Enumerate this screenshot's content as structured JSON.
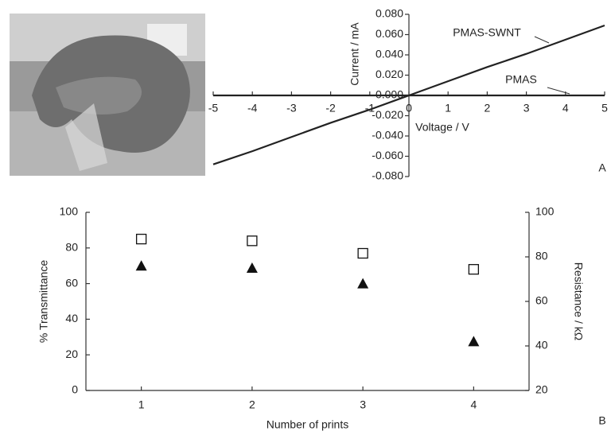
{
  "chart_data": [
    {
      "type": "line",
      "label": "A",
      "x_label": "Voltage / V",
      "y_label": "Current / mA",
      "x": [
        -5,
        -4,
        -3,
        -2,
        -1,
        0,
        1,
        2,
        3,
        4,
        5
      ],
      "xlim": [
        -5,
        5
      ],
      "xticks": [
        -5,
        -4,
        -3,
        -2,
        -1,
        0,
        1,
        2,
        3,
        4,
        5
      ],
      "ylim": [
        -0.08,
        0.08
      ],
      "yticks": [
        {
          "value": 0.08,
          "label": "0.080"
        },
        {
          "value": 0.06,
          "label": "0.060"
        },
        {
          "value": 0.04,
          "label": "0.040"
        },
        {
          "value": 0.02,
          "label": "0.020"
        },
        {
          "value": 0,
          "label": "0.000"
        },
        {
          "value": -0.02,
          "label": "-0.020"
        },
        {
          "value": -0.04,
          "label": "-0.040"
        },
        {
          "value": -0.06,
          "label": "-0.060"
        },
        {
          "value": -0.08,
          "label": "-0.080"
        }
      ],
      "series": [
        {
          "color": "#222222",
          "values": [
            -0.068,
            -0.055,
            -0.041,
            -0.027,
            -0.014,
            0,
            0.014,
            0.028,
            0.041,
            0.055,
            0.069
          ]
        },
        {
          "color": "#222222",
          "values": [
            0,
            0,
            0,
            0,
            0,
            0,
            0,
            0,
            0,
            0,
            0
          ]
        }
      ],
      "annotations": [
        {
          "text": "PMAS-SWNT"
        },
        {
          "text": "PMAS"
        }
      ]
    },
    {
      "type": "scatter",
      "label": "B",
      "x_label": "Number of prints",
      "y_label": "% Transmittance",
      "y2_label": "Resistance / kΩ",
      "x": [
        1,
        2,
        3,
        4
      ],
      "xlim": [
        0.5,
        4.5
      ],
      "xticks": [
        1,
        2,
        3,
        4
      ],
      "ylim": [
        0,
        100
      ],
      "yticks": [
        0,
        20,
        40,
        60,
        80,
        100
      ],
      "y2lim": [
        20,
        100
      ],
      "y2ticks": [
        20,
        40,
        60,
        80,
        100
      ],
      "series": [
        {
          "color": "#111111",
          "marker": "square-open",
          "values": [
            85,
            84,
            77,
            68
          ]
        },
        {
          "color": "#111111",
          "marker": "triangle",
          "axis": "y2",
          "values": [
            76,
            75,
            68,
            42
          ]
        }
      ]
    }
  ]
}
